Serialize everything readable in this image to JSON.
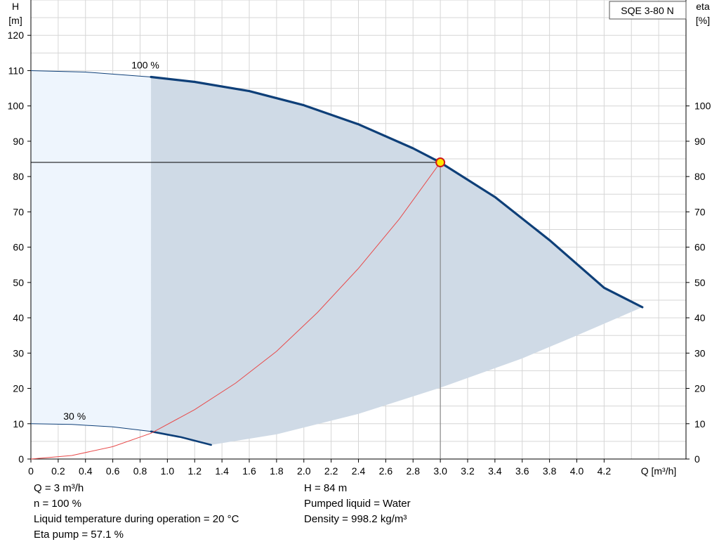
{
  "chart_data": {
    "type": "line",
    "title": "SQE 3-80 N",
    "xlabel": "Q [m³/h]",
    "ylabel_left": [
      "H",
      "[m]"
    ],
    "ylabel_right": [
      "eta",
      "[%]"
    ],
    "xlim": [
      0,
      4.8
    ],
    "ylim_left": [
      0,
      130
    ],
    "ylim_right": [
      0,
      130
    ],
    "x_ticks": [
      0,
      0.2,
      0.4,
      0.6,
      0.8,
      1.0,
      1.2,
      1.4,
      1.6,
      1.8,
      2.0,
      2.2,
      2.4,
      2.6,
      2.8,
      3.0,
      3.2,
      3.4,
      3.6,
      3.8,
      4.0,
      4.2
    ],
    "x_tick_labels": [
      "0",
      "0.2",
      "0.4",
      "0.6",
      "0.8",
      "1.0",
      "1.2",
      "1.4",
      "1.6",
      "1.8",
      "2.0",
      "2.2",
      "2.4",
      "2.6",
      "2.8",
      "3.0",
      "3.2",
      "3.4",
      "3.6",
      "3.8",
      "4.0",
      "4.2"
    ],
    "y_ticks_left": [
      0,
      10,
      20,
      30,
      40,
      50,
      60,
      70,
      80,
      90,
      100,
      110,
      120
    ],
    "y_ticks_right": [
      0,
      10,
      20,
      30,
      40,
      50,
      60,
      70,
      80,
      90,
      100
    ],
    "grid": true,
    "series": [
      {
        "name": "100 %",
        "color": "#0e3f78",
        "x": [
          0,
          0.4,
          0.88,
          1.2,
          1.6,
          2.0,
          2.4,
          2.8,
          3.0,
          3.4,
          3.8,
          4.2,
          4.48
        ],
        "y": [
          110,
          109.6,
          108.2,
          106.8,
          104.2,
          100.2,
          94.8,
          88.0,
          84.0,
          74.2,
          62.0,
          48.5,
          43.0
        ]
      },
      {
        "name": "30 %",
        "color": "#0e3f78",
        "x": [
          0,
          0.3,
          0.6,
          0.88,
          1.1,
          1.32
        ],
        "y": [
          10,
          9.8,
          9.1,
          7.8,
          6.2,
          4.0
        ]
      },
      {
        "name": "",
        "color": "#e84a4a",
        "x": [
          0,
          0.3,
          0.6,
          0.88,
          1.2,
          1.5,
          1.8,
          2.1,
          2.4,
          2.7,
          3.0
        ],
        "y": [
          0,
          1.0,
          3.5,
          7.3,
          14.0,
          21.5,
          30.5,
          41.5,
          54.0,
          68.0,
          84.0
        ]
      }
    ],
    "duty_point": {
      "x": 3.0,
      "y": 84,
      "color": "#ffe600",
      "edge": "#d01818"
    }
  },
  "info_left": [
    "Q = 3 m³/h",
    "n = 100 %",
    "Liquid temperature during operation = 20 °C",
    "Eta pump = 57.1 %"
  ],
  "info_right": [
    "H = 84 m",
    "Pumped liquid = Water",
    "Density = 998.2 kg/m³"
  ]
}
